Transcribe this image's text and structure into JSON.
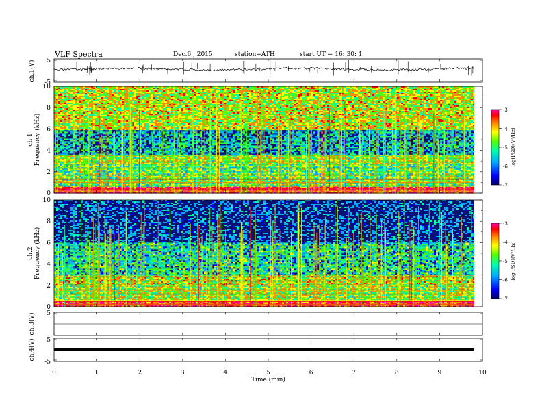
{
  "header": {
    "title": "VLF  Spectra",
    "date": "Dec.6  , 2015",
    "station": "station=ATH",
    "start": "start  UT  =   16: 30: 1"
  },
  "colors": {
    "spectrogram_background": "#0a1170",
    "colormap": [
      "#000066",
      "#0000ff",
      "#00aaff",
      "#00ffaa",
      "#55ff00",
      "#ffff00",
      "#ff8800",
      "#ff0000",
      "#ff00aa"
    ]
  },
  "chart_data": [
    {
      "type": "line",
      "panel": "ch1",
      "ylabel": "ch.1(V)",
      "ylim": [
        -5,
        5
      ],
      "yticks": [
        "5",
        "-5"
      ],
      "series": [
        {
          "values": "noisy trace near 0 V with sparse spikes"
        }
      ]
    },
    {
      "type": "heatmap",
      "panel": "ch1-spectrogram",
      "ylabel": "ch.1\nFrequency  (kHz)",
      "ylim": [
        0,
        10
      ],
      "yticks": [
        "0",
        "2",
        "4",
        "6",
        "8",
        "10"
      ],
      "colorbar": {
        "label": "log(PSD)(V²/Hz)",
        "range": [
          -7,
          -3
        ],
        "ticks": [
          "-3",
          "-4",
          "-5",
          "-6",
          "-7"
        ]
      },
      "bands_khz": [
        {
          "from": 0,
          "to": 0.6,
          "level": 0.9
        },
        {
          "from": 0.6,
          "to": 2.0,
          "level": 0.5
        },
        {
          "from": 2.0,
          "to": 2.8,
          "level": 0.45
        },
        {
          "from": 2.8,
          "to": 3.6,
          "level": 0.55
        },
        {
          "from": 3.6,
          "to": 6.0,
          "level": 0.25
        },
        {
          "from": 6.0,
          "to": 10.0,
          "level": 0.6
        }
      ]
    },
    {
      "type": "heatmap",
      "panel": "ch2-spectrogram",
      "ylabel": "ch.2\nFrequency  (kHz)",
      "ylim": [
        0,
        10
      ],
      "yticks": [
        "0",
        "2",
        "4",
        "6",
        "8",
        "10"
      ],
      "colorbar": {
        "label": "log(PSD)(V²/Hz)",
        "range": [
          -7,
          -3
        ],
        "ticks": [
          "-3",
          "-4",
          "-5",
          "-6",
          "-7"
        ]
      },
      "bands_khz": [
        {
          "from": 0,
          "to": 0.6,
          "level": 0.9
        },
        {
          "from": 0.6,
          "to": 2.0,
          "level": 0.55
        },
        {
          "from": 2.0,
          "to": 3.0,
          "level": 0.6
        },
        {
          "from": 3.0,
          "to": 6.0,
          "level": 0.35
        },
        {
          "from": 6.0,
          "to": 10.0,
          "level": 0.1
        }
      ]
    },
    {
      "type": "line",
      "panel": "ch3",
      "ylabel": "ch.3(V)",
      "ylim": [
        -5,
        5
      ],
      "yticks": [
        "5"
      ],
      "series": [
        {
          "values": "flat"
        }
      ]
    },
    {
      "type": "line",
      "panel": "ch4",
      "ylabel": "ch.4(V)",
      "ylim": [
        -5,
        5
      ],
      "yticks": [
        "5",
        "-5"
      ],
      "series": [
        {
          "values": "thick flat trace near 0 V"
        }
      ]
    }
  ],
  "xaxis": {
    "label": "Time  (min)",
    "range": [
      0,
      10
    ],
    "ticks": [
      "0",
      "1",
      "2",
      "3",
      "4",
      "5",
      "6",
      "7",
      "8",
      "9",
      "10"
    ]
  }
}
